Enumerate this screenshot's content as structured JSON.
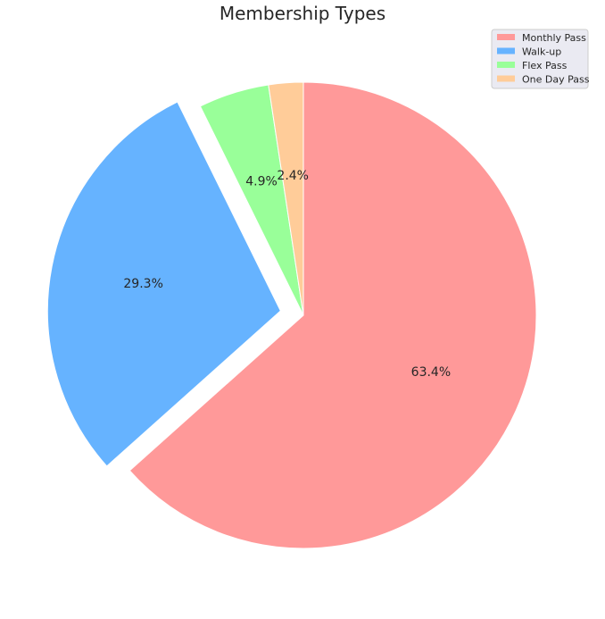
{
  "chart_data": {
    "type": "pie",
    "title": "Membership Types",
    "start_angle_deg": 90,
    "direction": "clockwise",
    "legend_position": "top-right",
    "slices": [
      {
        "label": "Monthly Pass",
        "value": 63.4,
        "pct_label": "63.4%",
        "color": "#ff9999",
        "explode": 0
      },
      {
        "label": "Walk-up",
        "value": 29.3,
        "pct_label": "29.3%",
        "color": "#66b3ff",
        "explode": 0.1
      },
      {
        "label": "Flex Pass",
        "value": 4.9,
        "pct_label": "4.9%",
        "color": "#99ff99",
        "explode": 0
      },
      {
        "label": "One Day Pass",
        "value": 2.4,
        "pct_label": "2.4%",
        "color": "#ffcc99",
        "explode": 0
      }
    ]
  }
}
